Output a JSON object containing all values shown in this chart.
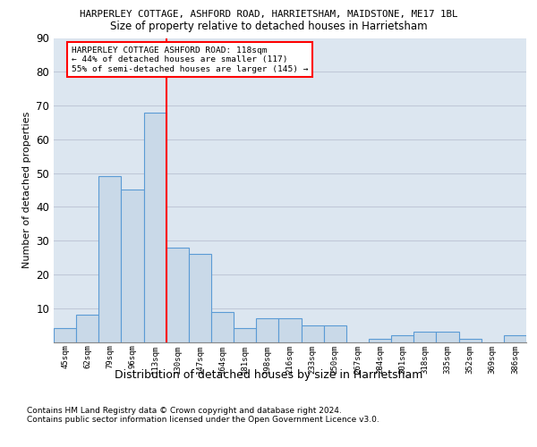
{
  "title_line1": "HARPERLEY COTTAGE, ASHFORD ROAD, HARRIETSHAM, MAIDSTONE, ME17 1BL",
  "title_line2": "Size of property relative to detached houses in Harrietsham",
  "xlabel": "Distribution of detached houses by size in Harrietsham",
  "ylabel": "Number of detached properties",
  "categories": [
    "45sqm",
    "62sqm",
    "79sqm",
    "96sqm",
    "113sqm",
    "130sqm",
    "147sqm",
    "164sqm",
    "181sqm",
    "198sqm",
    "216sqm",
    "233sqm",
    "250sqm",
    "267sqm",
    "284sqm",
    "301sqm",
    "318sqm",
    "335sqm",
    "352sqm",
    "369sqm",
    "386sqm"
  ],
  "values": [
    4,
    8,
    49,
    45,
    68,
    28,
    26,
    9,
    4,
    7,
    7,
    5,
    5,
    0,
    1,
    2,
    3,
    3,
    1,
    0,
    2
  ],
  "bar_color": "#c9d9e8",
  "bar_edge_color": "#5b9bd5",
  "vline_x": 4.5,
  "property_line_label": "HARPERLEY COTTAGE ASHFORD ROAD: 118sqm",
  "annotation_line2": "← 44% of detached houses are smaller (117)",
  "annotation_line3": "55% of semi-detached houses are larger (145) →",
  "vline_color": "red",
  "ylim": [
    0,
    90
  ],
  "yticks": [
    0,
    10,
    20,
    30,
    40,
    50,
    60,
    70,
    80,
    90
  ],
  "grid_color": "#c0c8d8",
  "background_color": "#dce6f0",
  "footer_line1": "Contains HM Land Registry data © Crown copyright and database right 2024.",
  "footer_line2": "Contains public sector information licensed under the Open Government Licence v3.0."
}
